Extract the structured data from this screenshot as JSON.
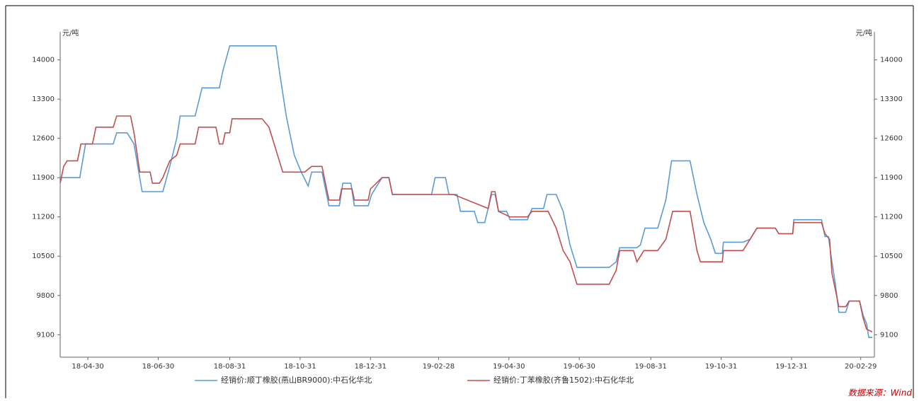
{
  "chart_data": {
    "type": "line",
    "y_label": "元/吨",
    "y2_label": "元/吨",
    "source": "数据来源：Wind",
    "xlim": [
      "2018-04-06",
      "2020-03-10"
    ],
    "xticks": [
      {
        "value": "2018-04-30",
        "label": "18-04-30"
      },
      {
        "value": "2018-06-30",
        "label": "18-06-30"
      },
      {
        "value": "2018-08-31",
        "label": "18-08-31"
      },
      {
        "value": "2018-10-31",
        "label": "18-10-31"
      },
      {
        "value": "2018-12-31",
        "label": "18-12-31"
      },
      {
        "value": "2019-02-28",
        "label": "19-02-28"
      },
      {
        "value": "2019-04-30",
        "label": "19-04-30"
      },
      {
        "value": "2019-06-30",
        "label": "19-06-30"
      },
      {
        "value": "2019-08-31",
        "label": "19-08-31"
      },
      {
        "value": "2019-10-31",
        "label": "19-10-31"
      },
      {
        "value": "2019-12-31",
        "label": "19-12-31"
      },
      {
        "value": "2020-02-29",
        "label": "20-02-29"
      }
    ],
    "ylim": [
      8700,
      14500
    ],
    "yticks": [
      9100,
      9800,
      10500,
      11200,
      11900,
      12600,
      13300,
      14000
    ],
    "y2lim": [
      8700,
      14500
    ],
    "y2ticks": [
      9100,
      9800,
      10500,
      11200,
      11900,
      12600,
      13300,
      14000
    ],
    "grid": false,
    "legend": "bottom",
    "series": [
      {
        "name": "经销价:顺丁橡胶(燕山BR9000):中石化华北",
        "color": "#5b9bd5",
        "x": [
          "2018-04-06",
          "2018-04-23",
          "2018-04-28",
          "2018-05-22",
          "2018-05-25",
          "2018-06-03",
          "2018-06-09",
          "2018-06-16",
          "2018-07-04",
          "2018-07-10",
          "2018-07-16",
          "2018-07-19",
          "2018-08-01",
          "2018-08-07",
          "2018-08-22",
          "2018-08-25",
          "2018-08-31",
          "2018-10-10",
          "2018-10-13",
          "2018-10-19",
          "2018-10-26",
          "2018-11-01",
          "2018-11-07",
          "2018-11-10",
          "2018-11-19",
          "2018-11-25",
          "2018-12-04",
          "2018-12-07",
          "2018-12-14",
          "2018-12-17",
          "2018-12-29",
          "2019-01-01",
          "2019-01-10",
          "2019-01-16",
          "2019-01-19",
          "2019-02-22",
          "2019-02-25",
          "2019-03-06",
          "2019-03-09",
          "2019-03-16",
          "2019-03-19",
          "2019-03-31",
          "2019-04-03",
          "2019-04-09",
          "2019-04-15",
          "2019-04-18",
          "2019-04-21",
          "2019-04-28",
          "2019-05-01",
          "2019-05-16",
          "2019-05-20",
          "2019-05-30",
          "2019-06-02",
          "2019-06-10",
          "2019-06-16",
          "2019-06-22",
          "2019-06-28",
          "2019-07-26",
          "2019-08-01",
          "2019-08-04",
          "2019-08-19",
          "2019-08-22",
          "2019-08-26",
          "2019-09-06",
          "2019-09-13",
          "2019-09-18",
          "2019-10-04",
          "2019-10-10",
          "2019-10-16",
          "2019-10-22",
          "2019-10-26",
          "2019-11-01",
          "2019-11-02",
          "2019-11-19",
          "2019-11-25",
          "2019-12-01",
          "2019-12-17",
          "2019-12-20",
          "2020-01-01",
          "2020-01-02",
          "2020-01-26",
          "2020-01-29",
          "2020-02-01",
          "2020-02-04",
          "2020-02-07",
          "2020-02-10",
          "2020-02-16",
          "2020-02-19",
          "2020-02-28",
          "2020-03-02",
          "2020-03-05",
          "2020-03-07",
          "2020-03-10"
        ],
        "values": [
          11900,
          11900,
          12500,
          12500,
          12700,
          12700,
          12500,
          11650,
          11650,
          12100,
          12600,
          13000,
          13000,
          13500,
          13500,
          13800,
          14250,
          14250,
          13800,
          13000,
          12300,
          12000,
          11750,
          12000,
          12000,
          11400,
          11400,
          11800,
          11800,
          11400,
          11400,
          11600,
          11900,
          11900,
          11600,
          11600,
          11900,
          11900,
          11600,
          11600,
          11300,
          11300,
          11100,
          11100,
          11600,
          11600,
          11300,
          11300,
          11150,
          11150,
          11350,
          11350,
          11600,
          11600,
          11300,
          10700,
          10300,
          10300,
          10400,
          10650,
          10650,
          10700,
          11000,
          11000,
          11500,
          12200,
          12200,
          11600,
          11100,
          10800,
          10550,
          10550,
          10750,
          10750,
          10800,
          11000,
          11000,
          10900,
          10900,
          11150,
          11150,
          10850,
          10850,
          10400,
          10000,
          9500,
          9500,
          9700,
          9700,
          9450,
          9300,
          9050,
          9050
        ]
      },
      {
        "name": "经销价:丁苯橡胶(齐鲁1502):中石化华北",
        "color": "#c0504d",
        "x": [
          "2018-04-06",
          "2018-04-09",
          "2018-04-12",
          "2018-04-21",
          "2018-04-24",
          "2018-05-04",
          "2018-05-07",
          "2018-05-22",
          "2018-05-25",
          "2018-06-06",
          "2018-06-09",
          "2018-06-14",
          "2018-06-23",
          "2018-06-25",
          "2018-07-01",
          "2018-07-04",
          "2018-07-10",
          "2018-07-16",
          "2018-07-19",
          "2018-08-01",
          "2018-08-04",
          "2018-08-19",
          "2018-08-22",
          "2018-08-25",
          "2018-08-27",
          "2018-08-31",
          "2018-09-02",
          "2018-09-28",
          "2018-10-04",
          "2018-10-10",
          "2018-10-16",
          "2018-11-04",
          "2018-11-10",
          "2018-11-19",
          "2018-11-22",
          "2018-11-25",
          "2018-12-04",
          "2018-12-06",
          "2018-12-15",
          "2018-12-17",
          "2018-12-29",
          "2018-12-31",
          "2019-01-10",
          "2019-01-16",
          "2019-01-19",
          "2019-03-13",
          "2019-04-12",
          "2019-04-15",
          "2019-04-18",
          "2019-04-21",
          "2019-05-01",
          "2019-05-16",
          "2019-05-20",
          "2019-06-03",
          "2019-06-10",
          "2019-06-16",
          "2019-06-22",
          "2019-06-28",
          "2019-07-26",
          "2019-08-01",
          "2019-08-04",
          "2019-08-16",
          "2019-08-19",
          "2019-08-25",
          "2019-09-06",
          "2019-09-13",
          "2019-09-19",
          "2019-10-04",
          "2019-10-10",
          "2019-10-13",
          "2019-11-01",
          "2019-11-02",
          "2019-11-19",
          "2019-11-25",
          "2019-12-01",
          "2019-12-17",
          "2019-12-20",
          "2020-01-01",
          "2020-01-02",
          "2020-01-26",
          "2020-01-29",
          "2020-02-02",
          "2020-02-04",
          "2020-02-07",
          "2020-02-10",
          "2020-02-16",
          "2020-02-19",
          "2020-02-28",
          "2020-03-02",
          "2020-03-05",
          "2020-03-10"
        ],
        "values": [
          11800,
          12100,
          12200,
          12200,
          12500,
          12500,
          12800,
          12800,
          13000,
          13000,
          12700,
          12000,
          12000,
          11800,
          11800,
          11900,
          12200,
          12300,
          12500,
          12500,
          12800,
          12800,
          12500,
          12500,
          12700,
          12700,
          12950,
          12950,
          12800,
          12400,
          12000,
          12000,
          12100,
          12100,
          11800,
          11500,
          11500,
          11700,
          11700,
          11500,
          11500,
          11700,
          11900,
          11900,
          11600,
          11600,
          11350,
          11650,
          11650,
          11300,
          11200,
          11200,
          11300,
          11300,
          11000,
          10600,
          10400,
          10000,
          10000,
          10250,
          10600,
          10600,
          10400,
          10600,
          10600,
          10800,
          11300,
          11300,
          10600,
          10400,
          10400,
          10600,
          10600,
          10800,
          11000,
          11000,
          10900,
          10900,
          11100,
          11100,
          10900,
          10800,
          10200,
          9900,
          9600,
          9600,
          9700,
          9700,
          9400,
          9200,
          9150
        ]
      }
    ]
  }
}
